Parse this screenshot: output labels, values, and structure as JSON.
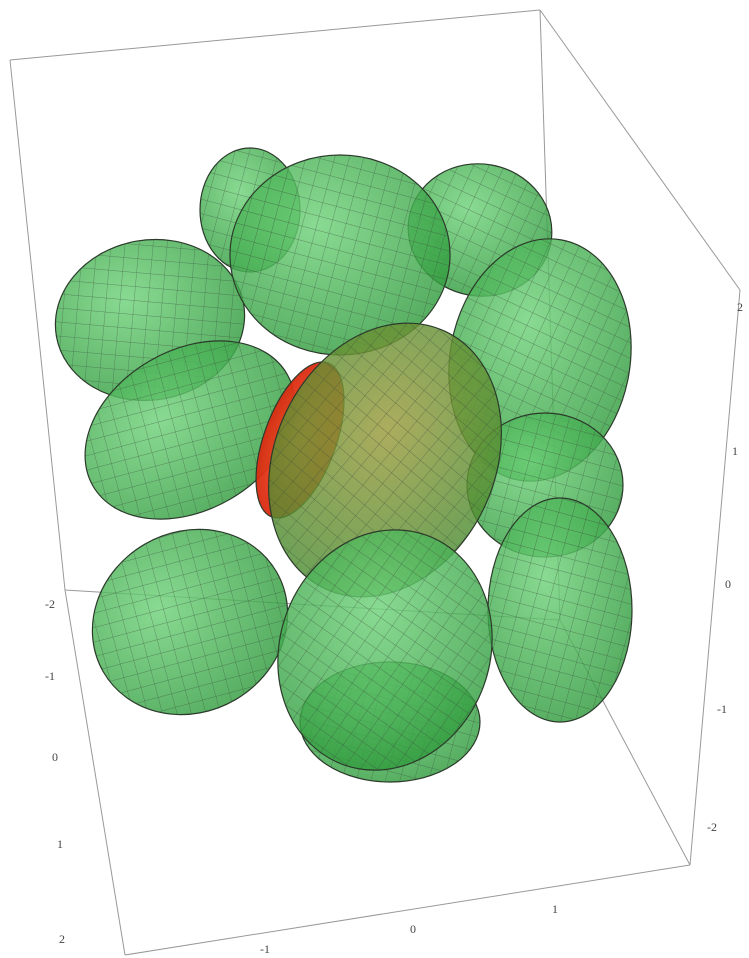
{
  "axes": {
    "left": {
      "ticks": [
        "-2",
        "-1",
        "0",
        "1",
        "2"
      ]
    },
    "bottom": {
      "ticks": [
        "-1",
        "0",
        "1"
      ]
    },
    "right": {
      "ticks": [
        "2",
        "1",
        "0",
        "-1",
        "-2"
      ]
    }
  }
}
